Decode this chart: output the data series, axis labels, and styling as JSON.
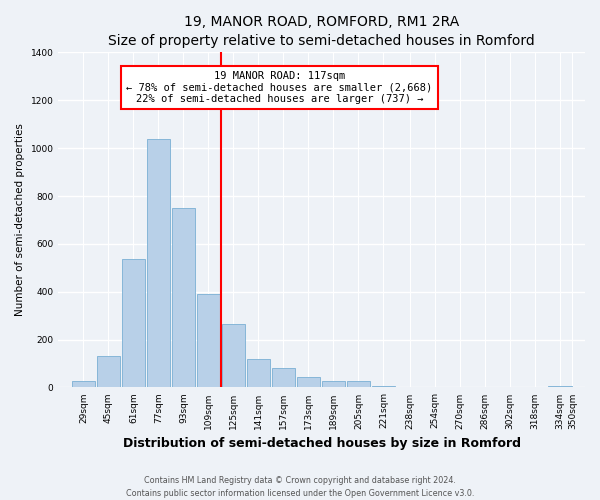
{
  "title": "19, MANOR ROAD, ROMFORD, RM1 2RA",
  "subtitle": "Size of property relative to semi-detached houses in Romford",
  "xlabel": "Distribution of semi-detached houses by size in Romford",
  "ylabel": "Number of semi-detached properties",
  "bin_labels": [
    "29sqm",
    "45sqm",
    "61sqm",
    "77sqm",
    "93sqm",
    "109sqm",
    "125sqm",
    "141sqm",
    "157sqm",
    "173sqm",
    "189sqm",
    "205sqm",
    "221sqm",
    "238sqm",
    "254sqm",
    "270sqm",
    "286sqm",
    "302sqm",
    "318sqm",
    "334sqm",
    "350sqm"
  ],
  "bin_left_edges": [
    29,
    45,
    61,
    77,
    93,
    109,
    125,
    141,
    157,
    173,
    189,
    205,
    221,
    238,
    254,
    270,
    286,
    302,
    318,
    334
  ],
  "bin_width": 16,
  "bar_heights": [
    25,
    130,
    535,
    1040,
    748,
    390,
    265,
    118,
    82,
    42,
    28,
    28,
    7,
    0,
    0,
    0,
    0,
    0,
    0,
    5
  ],
  "bar_color": "#b8d0e8",
  "bar_edge_color": "#7aafd4",
  "vline_x": 125,
  "vline_color": "red",
  "annotation_title": "19 MANOR ROAD: 117sqm",
  "annotation_line1": "← 78% of semi-detached houses are smaller (2,668)",
  "annotation_line2": "22% of semi-detached houses are larger (737) →",
  "annotation_box_facecolor": "white",
  "annotation_box_edgecolor": "red",
  "ylim_max": 1400,
  "yticks": [
    0,
    200,
    400,
    600,
    800,
    1000,
    1200,
    1400
  ],
  "xlim_min": 21,
  "xlim_max": 358,
  "footer1": "Contains HM Land Registry data © Crown copyright and database right 2024.",
  "footer2": "Contains public sector information licensed under the Open Government Licence v3.0.",
  "bg_color": "#eef2f7",
  "grid_color": "white",
  "title_fontsize": 10,
  "subtitle_fontsize": 8.5,
  "ylabel_fontsize": 7.5,
  "xlabel_fontsize": 9,
  "tick_fontsize": 6.5,
  "footer_fontsize": 5.8,
  "annot_fontsize": 7.5
}
